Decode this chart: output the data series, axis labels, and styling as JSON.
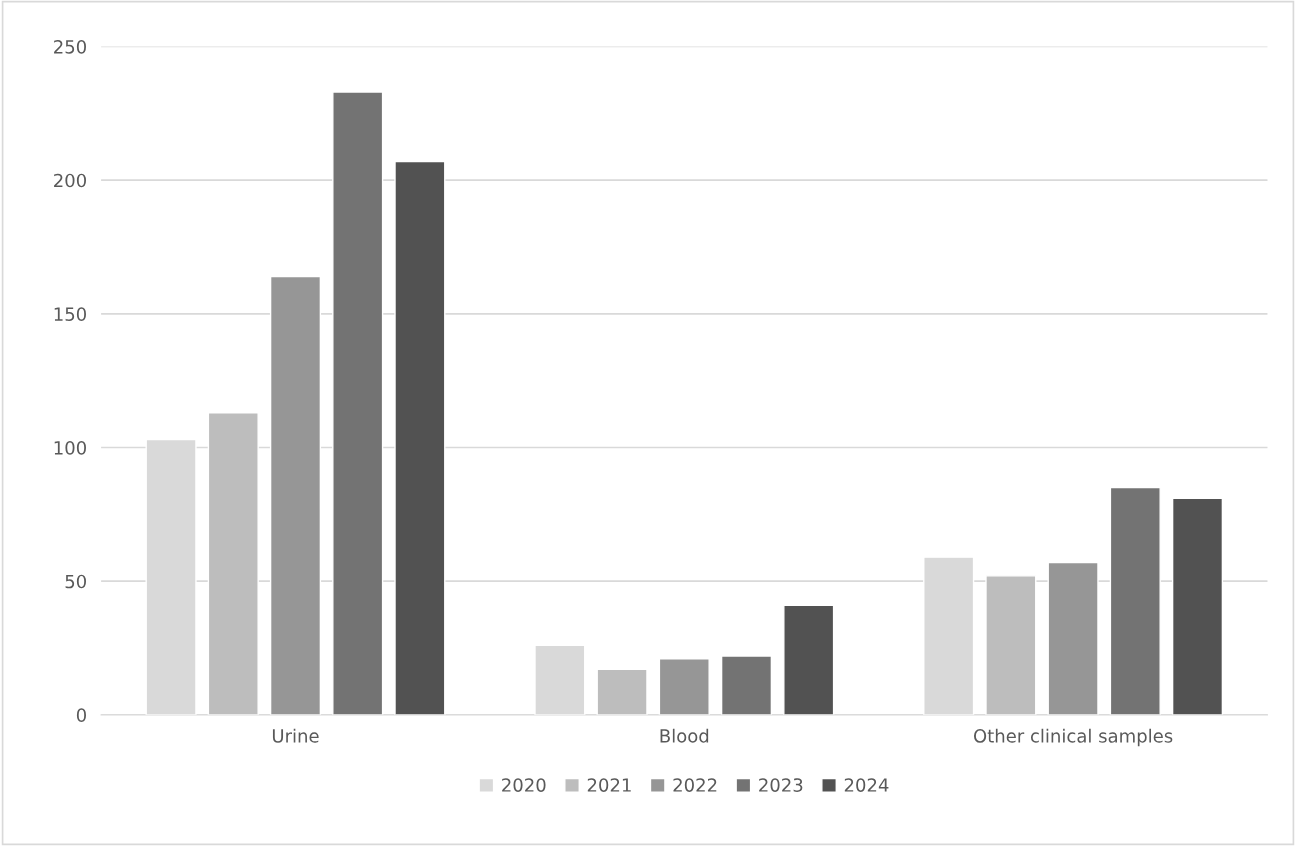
{
  "chart_data": {
    "type": "bar",
    "categories": [
      "Urine",
      "Blood",
      "Other clinical samples"
    ],
    "series": [
      {
        "name": "2020",
        "color": "#d9d9d9",
        "values": [
          103,
          26,
          59
        ]
      },
      {
        "name": "2021",
        "color": "#bdbdbd",
        "values": [
          113,
          17,
          52
        ]
      },
      {
        "name": "2022",
        "color": "#969696",
        "values": [
          164,
          21,
          57
        ]
      },
      {
        "name": "2023",
        "color": "#737373",
        "values": [
          233,
          22,
          85
        ]
      },
      {
        "name": "2024",
        "color": "#525252",
        "values": [
          207,
          41,
          81
        ]
      }
    ],
    "ylim": [
      0,
      250
    ],
    "yticks": [
      0,
      50,
      100,
      150,
      200,
      250
    ],
    "grid": "y",
    "legend": "bottom"
  }
}
